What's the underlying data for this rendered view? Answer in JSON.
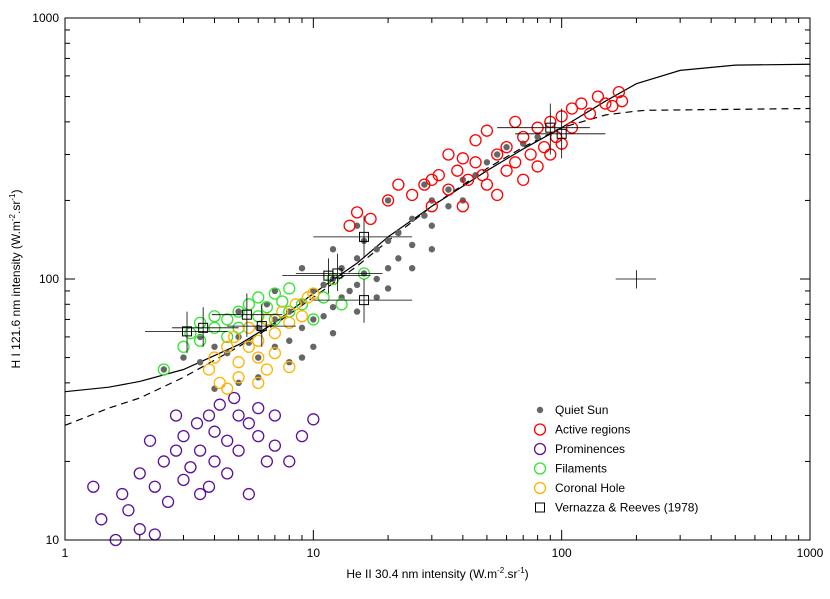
{
  "chart_data": {
    "type": "scatter",
    "xlabel": [
      "He II 30.4 nm intensity (W.m",
      "-2",
      ".sr",
      "-1",
      ")"
    ],
    "ylabel": [
      "H I 121.6 nm intensity (W.m",
      "-2",
      ".sr",
      "-1",
      ")"
    ],
    "log_x": true,
    "log_y": true,
    "xlim": [
      1,
      1000
    ],
    "ylim": [
      10,
      1000
    ],
    "xticks": [
      1,
      10,
      100,
      1000
    ],
    "yticks": [
      10,
      100,
      1000
    ],
    "xminorticks": [
      2,
      3,
      4,
      5,
      6,
      7,
      8,
      9,
      20,
      30,
      40,
      50,
      60,
      70,
      80,
      90,
      200,
      300,
      400,
      500,
      600,
      700,
      800,
      900
    ],
    "yminorticks": [
      20,
      30,
      40,
      50,
      60,
      70,
      80,
      90,
      200,
      300,
      400,
      500,
      600,
      700,
      800,
      900
    ],
    "legend": "lower right",
    "series": [
      {
        "name": "Quiet Sun",
        "color": "#666666",
        "marker": "dot",
        "x": [
          2.5,
          3,
          3.5,
          4,
          4.5,
          5,
          5.5,
          6,
          6,
          7,
          7,
          8,
          8,
          9,
          9,
          10,
          10,
          11,
          11,
          12,
          12,
          13,
          14,
          15,
          15,
          16,
          18,
          18,
          20,
          20,
          22,
          22,
          25,
          25,
          28,
          30,
          30,
          35,
          35,
          40,
          40,
          45,
          50,
          55,
          60,
          70,
          80,
          5,
          6,
          4,
          8,
          10,
          12,
          15,
          18,
          20,
          3.5,
          5,
          7,
          9,
          12,
          15,
          20,
          28,
          13,
          9,
          25,
          30,
          6.5,
          16
        ],
        "y": [
          45,
          50,
          48,
          55,
          52,
          60,
          57,
          65,
          50,
          70,
          55,
          75,
          58,
          82,
          65,
          90,
          70,
          95,
          72,
          100,
          78,
          110,
          90,
          120,
          95,
          105,
          130,
          100,
          140,
          110,
          150,
          120,
          170,
          135,
          175,
          200,
          160,
          220,
          190,
          240,
          200,
          250,
          280,
          300,
          320,
          330,
          350,
          40,
          42,
          38,
          48,
          55,
          62,
          75,
          85,
          92,
          60,
          75,
          90,
          110,
          130,
          160,
          200,
          230,
          85,
          50,
          110,
          130,
          80,
          140
        ]
      },
      {
        "name": "Active regions",
        "color": "#ff0000",
        "marker": "circle",
        "x": [
          12,
          14,
          15,
          17,
          20,
          22,
          25,
          28,
          30,
          32,
          35,
          38,
          40,
          42,
          45,
          48,
          50,
          55,
          55,
          60,
          60,
          65,
          70,
          70,
          75,
          80,
          80,
          85,
          90,
          90,
          95,
          100,
          100,
          110,
          110,
          120,
          130,
          140,
          150,
          160,
          170,
          175,
          45,
          65,
          35,
          50,
          30,
          40
        ],
        "y": [
          100,
          160,
          180,
          170,
          200,
          230,
          210,
          230,
          190,
          250,
          220,
          260,
          190,
          240,
          280,
          250,
          230,
          300,
          210,
          320,
          260,
          280,
          350,
          240,
          300,
          380,
          270,
          320,
          400,
          300,
          350,
          420,
          330,
          450,
          380,
          470,
          430,
          500,
          470,
          460,
          520,
          480,
          340,
          400,
          300,
          370,
          240,
          290
        ]
      },
      {
        "name": "Prominences",
        "color": "#5a109c",
        "marker": "circle",
        "x": [
          1.3,
          1.4,
          1.6,
          1.7,
          1.8,
          2,
          2,
          2.2,
          2.3,
          2.3,
          2.5,
          2.6,
          2.8,
          3,
          3,
          3.2,
          3.4,
          3.5,
          3.5,
          3.8,
          4,
          4,
          4.2,
          4.5,
          4.5,
          4.8,
          5,
          5,
          5.5,
          5.5,
          6,
          6,
          6.5,
          7,
          7,
          8,
          9,
          10,
          3.8,
          2.8
        ],
        "y": [
          16,
          12,
          10,
          15,
          13,
          11,
          18,
          24,
          10.5,
          16,
          20,
          14,
          22,
          17,
          25,
          19,
          28,
          22,
          15,
          30,
          20,
          26,
          33,
          24,
          18,
          35,
          22,
          30,
          15,
          28,
          25,
          32,
          20,
          23,
          30,
          20,
          25,
          29,
          16,
          30
        ]
      },
      {
        "name": "Filaments",
        "color": "#33e633",
        "marker": "circle",
        "x": [
          2.5,
          3,
          3.2,
          3.5,
          3.5,
          4,
          4,
          4.5,
          4.5,
          5,
          5,
          5.5,
          6,
          6,
          6.5,
          7,
          7,
          7.5,
          8,
          8,
          9,
          10,
          11,
          12,
          16,
          13
        ],
        "y": [
          45,
          55,
          62,
          58,
          68,
          65,
          72,
          70,
          60,
          75,
          65,
          80,
          72,
          85,
          78,
          88,
          70,
          82,
          92,
          75,
          80,
          70,
          85,
          100,
          105,
          80
        ]
      },
      {
        "name": "Coronal Hole",
        "color": "#ffb300",
        "marker": "circle",
        "x": [
          3.8,
          4,
          4.2,
          4.5,
          4.5,
          4.8,
          5,
          5,
          5.5,
          5.5,
          6,
          6,
          6.5,
          6.5,
          7,
          7,
          7.5,
          8,
          8,
          8.5,
          9,
          9.5,
          10,
          6
        ],
        "y": [
          45,
          50,
          40,
          55,
          38,
          60,
          48,
          42,
          55,
          65,
          50,
          58,
          70,
          45,
          62,
          52,
          75,
          68,
          46,
          80,
          72,
          85,
          88,
          40
        ]
      },
      {
        "name": "Vernazza & Reeves (1978)",
        "color": "#000000",
        "marker": "square",
        "x": [
          3.1,
          3.6,
          5.4,
          6.2,
          11.5,
          12.5,
          16,
          16,
          90,
          100
        ],
        "y": [
          63,
          65,
          73,
          66,
          103,
          105,
          145,
          83,
          380,
          360
        ],
        "x_low": [
          2.1,
          2.7,
          3.9,
          4.5,
          7.5,
          8.5,
          10,
          10,
          55,
          65
        ],
        "x_high": [
          4.5,
          5,
          7.5,
          8.5,
          17,
          19,
          25,
          25,
          130,
          150
        ],
        "y_low": [
          52,
          55,
          60,
          55,
          88,
          90,
          120,
          68,
          300,
          290
        ],
        "y_high": [
          75,
          78,
          88,
          80,
          120,
          125,
          175,
          100,
          470,
          450
        ]
      }
    ],
    "curves": [
      {
        "style": "solid",
        "x": [
          1,
          1.5,
          2,
          3,
          5,
          7,
          10,
          15,
          20,
          30,
          50,
          70,
          100,
          150,
          200,
          300,
          500,
          1000
        ],
        "y": [
          37,
          38.5,
          40.5,
          45,
          56,
          68,
          88,
          115,
          145,
          190,
          260,
          315,
          380,
          480,
          560,
          630,
          660,
          665
        ]
      },
      {
        "style": "dashed",
        "x": [
          1,
          1.5,
          2,
          3,
          5,
          7,
          10,
          15,
          20,
          30,
          50,
          70,
          100,
          150,
          200,
          220,
          1000
        ],
        "y": [
          27.5,
          32,
          35,
          42,
          55,
          67,
          85,
          112,
          140,
          190,
          265,
          320,
          380,
          425,
          440,
          443,
          450
        ]
      }
    ],
    "error_cross": {
      "x": 200,
      "y": 100,
      "x_low": 165,
      "x_high": 240,
      "y_low": 92,
      "y_high": 108
    }
  }
}
